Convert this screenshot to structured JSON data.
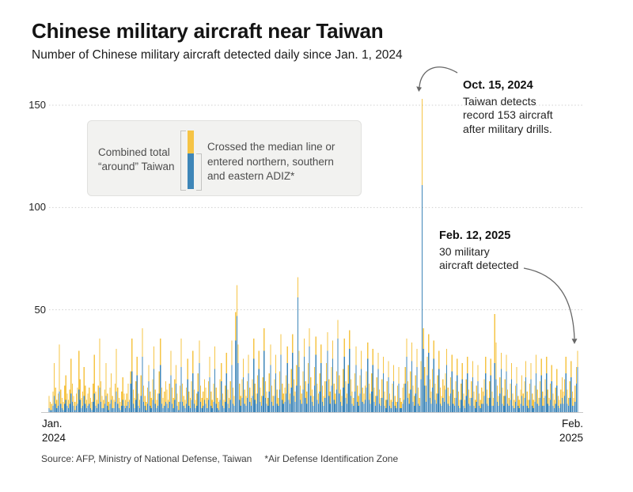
{
  "header": {
    "title": "Chinese military aircraft near Taiwan",
    "subtitle": "Number of Chinese military aircraft detected daily since Jan. 1, 2024"
  },
  "legend": {
    "left_label_lines": [
      "Combined total",
      "“around” Taiwan"
    ],
    "right_label_lines": [
      "Crossed the median line or",
      "entered northern, southern",
      "and eastern ADIZ*"
    ]
  },
  "annotations": [
    {
      "date": "Oct. 15, 2024",
      "lines": [
        "Taiwan detects",
        "record 153 aircraft",
        "after military drills."
      ]
    },
    {
      "date": "Feb. 12, 2025",
      "lines": [
        "30 military",
        "aircraft detected"
      ]
    }
  ],
  "axis": {
    "y_ticks": [
      "50",
      "100",
      "150"
    ],
    "x_left_lines": [
      "Jan.",
      "2024"
    ],
    "x_right_lines": [
      "Feb.",
      "2025"
    ]
  },
  "source": {
    "text": "Source: AFP, Ministry of National Defense, Taiwan",
    "footnote": "*Air Defense Identification Zone"
  },
  "colors": {
    "total_yellow": "#F6C445",
    "crossed_blue": "#3E86B8",
    "gridline": "#cfcfcf",
    "baseline": "#c8c8c8",
    "arrow": "#666666"
  },
  "chart_data": {
    "type": "bar",
    "stacked_overlay": true,
    "title": "Chinese military aircraft near Taiwan",
    "subtitle": "Number of Chinese military aircraft detected daily since Jan. 1, 2024",
    "x_range_labels": [
      "Jan. 2024",
      "Feb. 2025"
    ],
    "days": 409,
    "ylim": [
      0,
      160
    ],
    "y_ticks": [
      50,
      100,
      150
    ],
    "grid": "dotted-horizontal",
    "legend_position": "top-left-box",
    "highlights": [
      {
        "date": "Oct. 15, 2024",
        "total": 153
      },
      {
        "date": "Feb. 12, 2025",
        "total": 30
      }
    ],
    "series": [
      {
        "name": "Combined total “around” Taiwan (daily total)",
        "color": "#F6C445",
        "values": [
          8,
          5,
          4,
          10,
          24,
          12,
          6,
          9,
          33,
          11,
          7,
          5,
          13,
          18,
          9,
          6,
          11,
          26,
          14,
          8,
          5,
          9,
          12,
          30,
          16,
          7,
          10,
          22,
          13,
          6,
          9,
          12,
          7,
          5,
          14,
          28,
          10,
          6,
          13,
          36,
          15,
          8,
          6,
          11,
          24,
          9,
          5,
          12,
          19,
          8,
          6,
          14,
          31,
          12,
          7,
          5,
          10,
          17,
          9,
          6,
          9,
          14,
          6,
          20,
          36,
          11,
          7,
          15,
          27,
          9,
          6,
          18,
          41,
          13,
          8,
          5,
          12,
          23,
          10,
          7,
          16,
          32,
          11,
          6,
          9,
          20,
          36,
          12,
          7,
          10,
          15,
          11,
          6,
          14,
          30,
          12,
          7,
          16,
          23,
          9,
          5,
          13,
          36,
          14,
          8,
          6,
          12,
          26,
          10,
          7,
          15,
          30,
          11,
          6,
          9,
          19,
          35,
          13,
          7,
          10,
          16,
          12,
          7,
          15,
          27,
          10,
          6,
          14,
          32,
          12,
          7,
          5,
          16,
          24,
          9,
          6,
          13,
          29,
          11,
          7,
          15,
          35,
          12,
          8,
          49,
          62,
          33,
          14,
          8,
          16,
          26,
          11,
          8,
          15,
          28,
          12,
          7,
          16,
          36,
          14,
          9,
          18,
          30,
          12,
          8,
          17,
          41,
          15,
          10,
          7,
          19,
          33,
          13,
          8,
          16,
          28,
          11,
          7,
          20,
          38,
          14,
          9,
          12,
          18,
          32,
          14,
          9,
          21,
          38,
          16,
          10,
          23,
          66,
          30,
          13,
          9,
          20,
          36,
          15,
          10,
          24,
          41,
          17,
          11,
          8,
          22,
          37,
          14,
          9,
          19,
          33,
          13,
          8,
          15,
          24,
          39,
          16,
          10,
          22,
          35,
          14,
          9,
          20,
          45,
          18,
          11,
          8,
          21,
          36,
          15,
          9,
          23,
          40,
          16,
          10,
          7,
          19,
          32,
          13,
          8,
          18,
          30,
          12,
          9,
          13,
          20,
          34,
          14,
          9,
          19,
          31,
          12,
          8,
          17,
          29,
          11,
          7,
          16,
          27,
          10,
          6,
          15,
          25,
          9,
          6,
          14,
          23,
          8,
          5,
          13,
          22,
          7,
          5,
          12,
          14,
          22,
          36,
          15,
          9,
          20,
          34,
          13,
          8,
          18,
          31,
          12,
          7,
          25,
          153,
          41,
          22,
          13,
          27,
          38,
          16,
          10,
          21,
          35,
          14,
          9,
          18,
          30,
          12,
          8,
          16,
          13,
          19,
          31,
          12,
          8,
          17,
          28,
          11,
          7,
          15,
          26,
          10,
          6,
          14,
          24,
          9,
          6,
          16,
          27,
          11,
          7,
          15,
          25,
          10,
          6,
          13,
          23,
          9,
          6,
          12,
          10,
          16,
          27,
          11,
          7,
          15,
          26,
          10,
          7,
          48,
          34,
          13,
          8,
          17,
          29,
          12,
          8,
          16,
          28,
          11,
          7,
          14,
          24,
          9,
          6,
          13,
          22,
          8,
          6,
          11,
          18,
          9,
          15,
          25,
          10,
          6,
          14,
          24,
          9,
          6,
          13,
          28,
          11,
          7,
          15,
          26,
          10,
          7,
          16,
          27,
          11,
          7,
          14,
          23,
          9,
          6,
          12,
          21,
          8,
          6,
          11,
          17,
          10,
          16,
          27,
          11,
          7,
          15,
          25,
          10,
          7,
          13,
          22,
          30
        ]
      },
      {
        "name": "Crossed the median line or entered northern, southern and eastern ADIZ*",
        "color": "#3E86B8",
        "values": [
          2,
          1,
          1,
          3,
          8,
          4,
          2,
          3,
          10,
          4,
          2,
          1,
          4,
          6,
          3,
          2,
          4,
          9,
          5,
          3,
          1,
          3,
          4,
          11,
          6,
          2,
          3,
          8,
          4,
          2,
          3,
          4,
          2,
          1,
          5,
          9,
          3,
          2,
          4,
          12,
          5,
          2,
          2,
          4,
          8,
          3,
          1,
          4,
          6,
          2,
          2,
          5,
          10,
          4,
          2,
          1,
          3,
          6,
          3,
          2,
          3,
          5,
          2,
          14,
          20,
          4,
          2,
          6,
          18,
          3,
          2,
          8,
          27,
          5,
          3,
          1,
          4,
          15,
          3,
          2,
          6,
          21,
          4,
          2,
          3,
          9,
          23,
          4,
          2,
          3,
          5,
          4,
          2,
          5,
          18,
          4,
          2,
          6,
          14,
          3,
          1,
          5,
          22,
          5,
          3,
          2,
          4,
          16,
          3,
          2,
          6,
          19,
          4,
          2,
          3,
          10,
          24,
          5,
          2,
          3,
          6,
          4,
          2,
          6,
          17,
          3,
          2,
          5,
          21,
          4,
          2,
          1,
          6,
          15,
          3,
          2,
          5,
          19,
          4,
          2,
          6,
          23,
          4,
          3,
          35,
          47,
          24,
          6,
          3,
          7,
          17,
          4,
          3,
          7,
          19,
          5,
          3,
          8,
          26,
          6,
          4,
          9,
          21,
          5,
          3,
          8,
          30,
          7,
          4,
          3,
          10,
          23,
          5,
          3,
          8,
          19,
          4,
          3,
          11,
          28,
          6,
          4,
          5,
          9,
          24,
          6,
          4,
          12,
          29,
          8,
          5,
          13,
          56,
          22,
          6,
          4,
          11,
          27,
          7,
          4,
          14,
          32,
          8,
          5,
          3,
          13,
          28,
          6,
          4,
          10,
          24,
          5,
          3,
          7,
          15,
          30,
          8,
          4,
          13,
          26,
          6,
          4,
          11,
          36,
          9,
          5,
          3,
          12,
          27,
          7,
          4,
          14,
          31,
          8,
          4,
          3,
          10,
          23,
          5,
          3,
          9,
          21,
          5,
          4,
          6,
          12,
          26,
          6,
          4,
          10,
          23,
          5,
          3,
          8,
          21,
          4,
          3,
          7,
          19,
          3,
          2,
          6,
          17,
          3,
          2,
          5,
          15,
          3,
          2,
          5,
          14,
          2,
          2,
          4,
          6,
          14,
          27,
          7,
          4,
          11,
          25,
          5,
          3,
          9,
          22,
          4,
          3,
          16,
          111,
          31,
          13,
          5,
          18,
          29,
          7,
          4,
          12,
          26,
          6,
          4,
          9,
          21,
          4,
          3,
          7,
          5,
          11,
          23,
          4,
          3,
          9,
          20,
          4,
          3,
          7,
          18,
          3,
          2,
          6,
          16,
          3,
          2,
          8,
          19,
          4,
          3,
          7,
          17,
          3,
          2,
          5,
          15,
          3,
          2,
          4,
          4,
          8,
          19,
          4,
          3,
          7,
          18,
          3,
          3,
          24,
          16,
          5,
          3,
          9,
          21,
          4,
          3,
          8,
          20,
          4,
          3,
          6,
          16,
          3,
          2,
          5,
          14,
          3,
          2,
          4,
          8,
          3,
          7,
          17,
          3,
          2,
          6,
          16,
          3,
          2,
          5,
          19,
          4,
          3,
          7,
          18,
          3,
          3,
          8,
          19,
          4,
          3,
          6,
          15,
          3,
          2,
          4,
          13,
          3,
          2,
          4,
          7,
          4,
          8,
          19,
          4,
          3,
          7,
          17,
          3,
          3,
          5,
          14,
          22
        ]
      }
    ]
  }
}
